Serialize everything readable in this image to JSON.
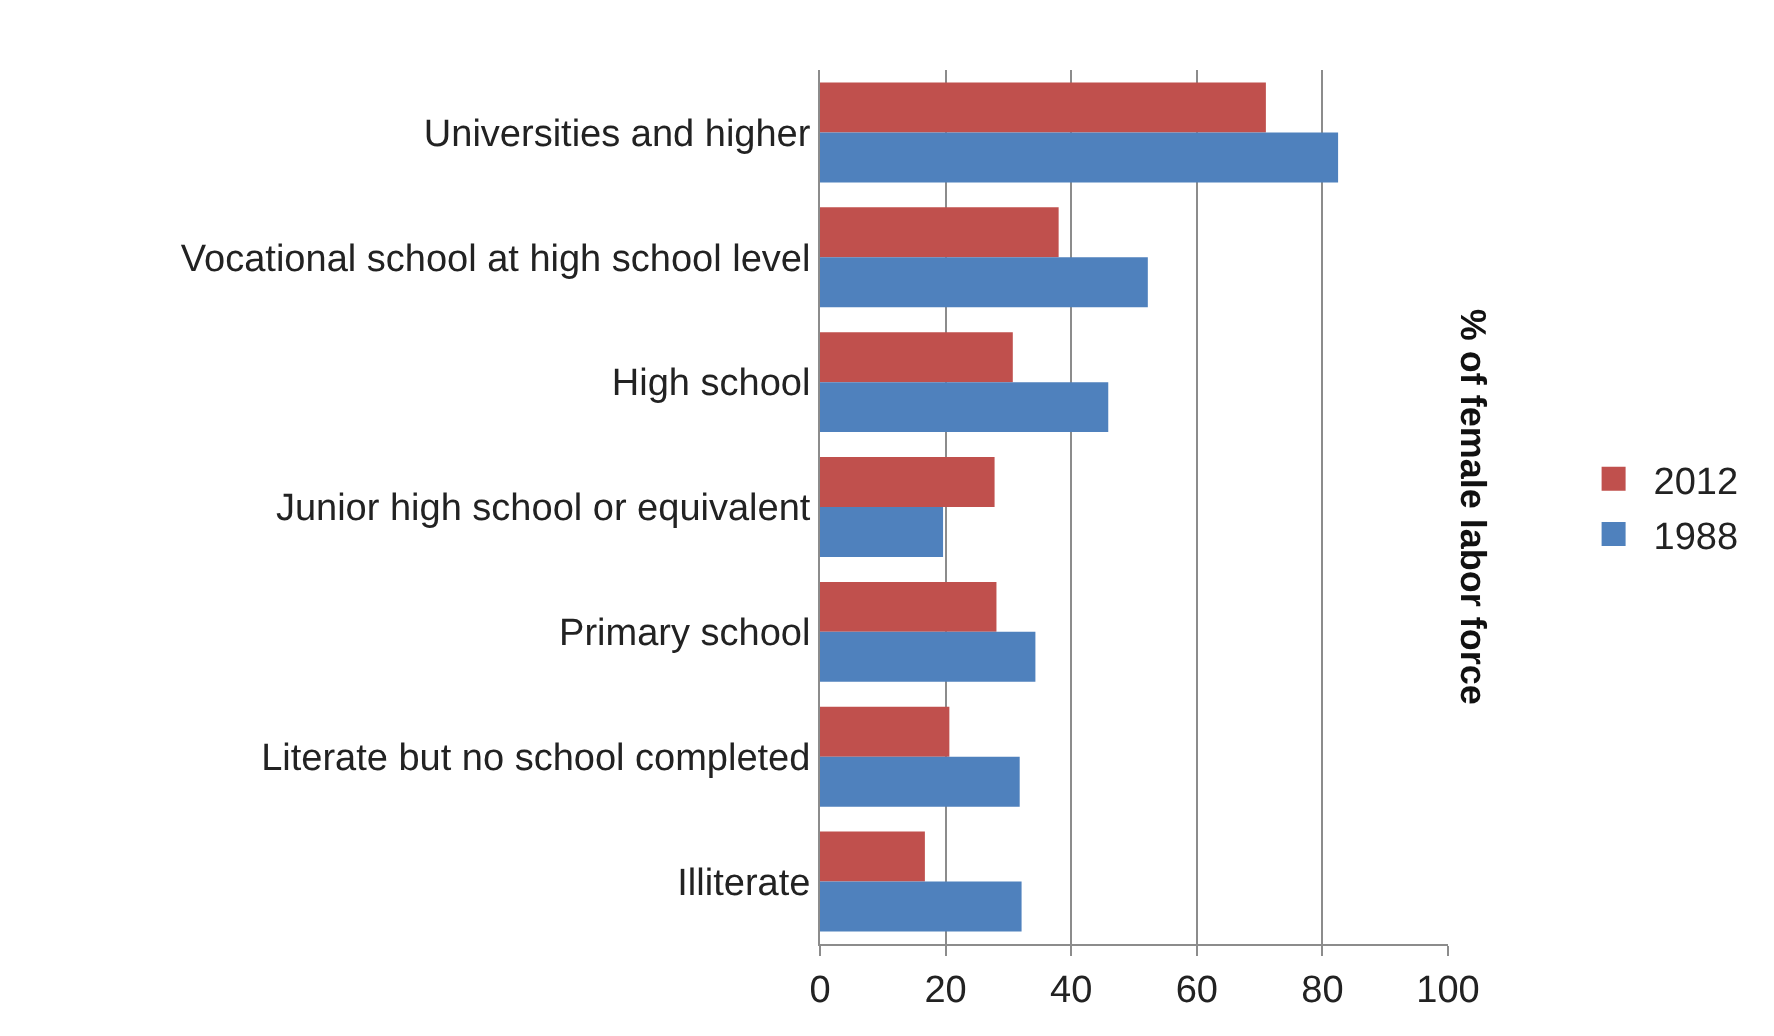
{
  "chart_data": {
    "type": "bar",
    "orientation": "horizontal",
    "y2label": "% of female labor force",
    "categories": [
      "Universities and higher",
      "Vocational school at high school level",
      "High school",
      "Junior high school or equivalent",
      "Primary school",
      "Literate but no school completed",
      "Illiterate"
    ],
    "series": [
      {
        "name": "2012",
        "color": "#c0504d",
        "values": [
          71,
          38,
          30.7,
          27.8,
          28.1,
          20.6,
          16.7
        ]
      },
      {
        "name": "1988",
        "color": "#4f81bd",
        "values": [
          82.5,
          52.2,
          45.9,
          19.6,
          34.3,
          31.8,
          32.1
        ]
      }
    ],
    "xlim": [
      0,
      100
    ],
    "xticks": [
      0,
      20,
      40,
      60,
      80,
      100
    ],
    "grid": "x",
    "legend": "right"
  }
}
